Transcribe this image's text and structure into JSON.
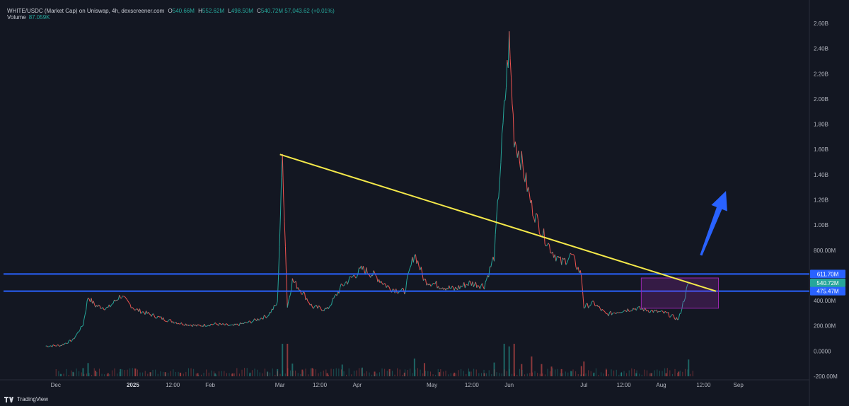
{
  "header": {
    "title": "WHITE/USDC (Market Cap) on Uniswap, 4h, dexscreener.com",
    "o_label": "O",
    "o_value": "540.66M",
    "h_label": "H",
    "h_value": "552.62M",
    "l_label": "L",
    "l_value": "498.50M",
    "c_label": "C",
    "c_value": "540.72M",
    "change": "57,043.62 (+0.01%)"
  },
  "volume": {
    "label": "Volume",
    "value": "87.059K"
  },
  "footer": {
    "brand": "TradingView"
  },
  "colors": {
    "background": "#131722",
    "price_line": "#26a69a",
    "price_line_down": "#ef5350",
    "trendline": "#f5e94a",
    "support_lines": "#2962ff",
    "box": "#9c27b0",
    "arrow": "#2962ff"
  },
  "chart_data": {
    "type": "line",
    "title": "",
    "xlabel": "",
    "ylabel": "",
    "x_tick_labels": [
      "Dec",
      "2025",
      "12:00",
      "Feb",
      "Mar",
      "12:00",
      "Apr",
      "May",
      "12:00",
      "Jun",
      "Jul",
      "12:00",
      "Aug",
      "12:00",
      "Sep"
    ],
    "y_tick_labels": [
      "2.60B",
      "2.40B",
      "2.20B",
      "2.00B",
      "1.80B",
      "1.60B",
      "1.40B",
      "1.20B",
      "1.00B",
      "800.00M",
      "400.00M",
      "200.00M",
      "0.0000",
      "-200.00M"
    ],
    "y_range_millions": [
      -200,
      2650
    ],
    "price_labels": [
      {
        "text": "611.70M",
        "value": 611.7,
        "kind": "line"
      },
      {
        "text": "540.72M",
        "value": 540.72,
        "kind": "last"
      },
      {
        "text": "475.47M",
        "value": 475.47,
        "kind": "line"
      }
    ],
    "series": [
      {
        "values_millions_by_week": [
          {
            "date": "2024-11-27",
            "v": 40
          },
          {
            "date": "2024-12-03",
            "v": 45
          },
          {
            "date": "2024-12-08",
            "v": 90
          },
          {
            "date": "2024-12-12",
            "v": 210
          },
          {
            "date": "2024-12-14",
            "v": 430
          },
          {
            "date": "2024-12-17",
            "v": 360
          },
          {
            "date": "2024-12-22",
            "v": 340
          },
          {
            "date": "2024-12-27",
            "v": 440
          },
          {
            "date": "2025-01-02",
            "v": 330
          },
          {
            "date": "2025-01-08",
            "v": 290
          },
          {
            "date": "2025-01-14",
            "v": 250
          },
          {
            "date": "2025-01-20",
            "v": 220
          },
          {
            "date": "2025-01-27",
            "v": 200
          },
          {
            "date": "2025-02-03",
            "v": 215
          },
          {
            "date": "2025-02-10",
            "v": 200
          },
          {
            "date": "2025-02-17",
            "v": 230
          },
          {
            "date": "2025-02-24",
            "v": 280
          },
          {
            "date": "2025-02-28",
            "v": 380
          },
          {
            "date": "2025-03-02",
            "v": 1550
          },
          {
            "date": "2025-03-04",
            "v": 350
          },
          {
            "date": "2025-03-06",
            "v": 560
          },
          {
            "date": "2025-03-10",
            "v": 470
          },
          {
            "date": "2025-03-14",
            "v": 350
          },
          {
            "date": "2025-03-20",
            "v": 330
          },
          {
            "date": "2025-03-26",
            "v": 520
          },
          {
            "date": "2025-04-03",
            "v": 650
          },
          {
            "date": "2025-04-08",
            "v": 600
          },
          {
            "date": "2025-04-14",
            "v": 500
          },
          {
            "date": "2025-04-20",
            "v": 470
          },
          {
            "date": "2025-04-24",
            "v": 780
          },
          {
            "date": "2025-04-28",
            "v": 560
          },
          {
            "date": "2025-05-04",
            "v": 520
          },
          {
            "date": "2025-05-10",
            "v": 490
          },
          {
            "date": "2025-05-16",
            "v": 540
          },
          {
            "date": "2025-05-22",
            "v": 520
          },
          {
            "date": "2025-05-26",
            "v": 750
          },
          {
            "date": "2025-05-30",
            "v": 1900
          },
          {
            "date": "2025-06-01",
            "v": 2450
          },
          {
            "date": "2025-06-03",
            "v": 1700
          },
          {
            "date": "2025-06-06",
            "v": 1500
          },
          {
            "date": "2025-06-10",
            "v": 1150
          },
          {
            "date": "2025-06-14",
            "v": 950
          },
          {
            "date": "2025-06-18",
            "v": 800
          },
          {
            "date": "2025-06-22",
            "v": 700
          },
          {
            "date": "2025-06-26",
            "v": 760
          },
          {
            "date": "2025-06-30",
            "v": 600
          },
          {
            "date": "2025-07-01",
            "v": 350
          },
          {
            "date": "2025-07-05",
            "v": 380
          },
          {
            "date": "2025-07-10",
            "v": 290
          },
          {
            "date": "2025-07-16",
            "v": 320
          },
          {
            "date": "2025-07-22",
            "v": 340
          },
          {
            "date": "2025-07-28",
            "v": 320
          },
          {
            "date": "2025-08-03",
            "v": 300
          },
          {
            "date": "2025-08-08",
            "v": 250
          },
          {
            "date": "2025-08-12",
            "v": 540
          }
        ]
      }
    ],
    "annotations": [
      {
        "kind": "trendline",
        "from": {
          "date": "2025-03-01",
          "v": 1560
        },
        "to": {
          "date": "2025-08-23",
          "v": 475
        }
      },
      {
        "kind": "horizontal",
        "v": 611.7
      },
      {
        "kind": "horizontal",
        "v": 475.47
      },
      {
        "kind": "box",
        "from": {
          "date": "2025-07-24",
          "v": 580
        },
        "to": {
          "date": "2025-08-24",
          "v": 340
        }
      },
      {
        "kind": "arrow",
        "from": {
          "date": "2025-08-17",
          "v": 760
        },
        "to": {
          "date": "2025-08-27",
          "v": 1270
        }
      }
    ]
  }
}
